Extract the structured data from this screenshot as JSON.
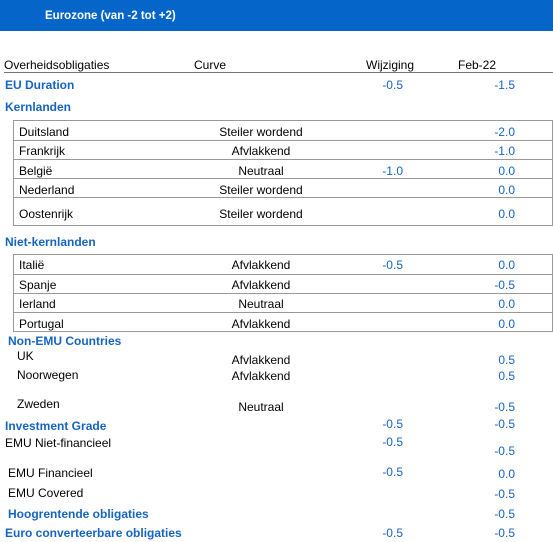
{
  "title": "Eurozone (van -2 tot +2)",
  "headers": {
    "name": "Overheidsobligaties",
    "curve": "Curve",
    "change": "Wijziging",
    "date": "Feb-22"
  },
  "rows": [
    {
      "name": "EU Duration",
      "curve": "",
      "change": "-0.5",
      "value": "-1.5",
      "style": "header"
    },
    {
      "name": "Kernlanden",
      "curve": "",
      "change": "",
      "value": "",
      "style": "header"
    },
    {
      "name": "Duitsland",
      "curve": "Steiler wordend",
      "change": "",
      "value": "-2.0",
      "style": "sub"
    },
    {
      "name": "Frankrijk",
      "curve": "Afvlakkend",
      "change": "",
      "value": "-1.0",
      "style": "sub"
    },
    {
      "name": "België",
      "curve": "Neutraal",
      "change": "-1.0",
      "value": "0.0",
      "style": "sub"
    },
    {
      "name": "Nederland",
      "curve": "Steiler wordend",
      "change": "",
      "value": "0.0",
      "style": "sub"
    },
    {
      "name": "Oostenrijk",
      "curve": "Steiler wordend",
      "change": "",
      "value": "0.0",
      "style": "sub"
    },
    {
      "name": "Niet-kernlanden",
      "curve": "",
      "change": "",
      "value": "",
      "style": "header"
    },
    {
      "name": "Italië",
      "curve": "Afvlakkend",
      "change": "-0.5",
      "value": "0.0",
      "style": "sub"
    },
    {
      "name": "Spanje",
      "curve": "Afvlakkend",
      "change": "",
      "value": "-0.5",
      "style": "sub"
    },
    {
      "name": "Ierland",
      "curve": "Neutraal",
      "change": "",
      "value": "0.0",
      "style": "sub"
    },
    {
      "name": "Portugal",
      "curve": "Afvlakkend",
      "change": "",
      "value": "0.0",
      "style": "sub"
    },
    {
      "name": "Non-EMU Countries",
      "curve": "",
      "change": "",
      "value": "",
      "style": "header"
    },
    {
      "name": "UK",
      "curve": "Afvlakkend",
      "change": "",
      "value": "0.5",
      "style": "plain"
    },
    {
      "name": "Noorwegen",
      "curve": "Afvlakkend",
      "change": "",
      "value": "0.5",
      "style": "plain"
    },
    {
      "name": "Zweden",
      "curve": "Neutraal",
      "change": "",
      "value": "-0.5",
      "style": "plain"
    },
    {
      "name": "Investment Grade",
      "curve": "",
      "change": "-0.5",
      "value": "-0.5",
      "style": "header"
    },
    {
      "name": "EMU Niet-financieel",
      "curve": "",
      "change": "-0.5",
      "value": "-0.5",
      "style": "plain"
    },
    {
      "name": "EMU Financieel",
      "curve": "",
      "change": "-0.5",
      "value": "0.0",
      "style": "plain"
    },
    {
      "name": "EMU Covered",
      "curve": "",
      "change": "",
      "value": "-0.5",
      "style": "plain"
    },
    {
      "name": "Hoogrentende obligaties",
      "curve": "",
      "change": "",
      "value": "-0.5",
      "style": "header"
    },
    {
      "name": "Euro converteerbare obligaties",
      "curve": "",
      "change": "-0.5",
      "value": "-0.5",
      "style": "header"
    }
  ]
}
